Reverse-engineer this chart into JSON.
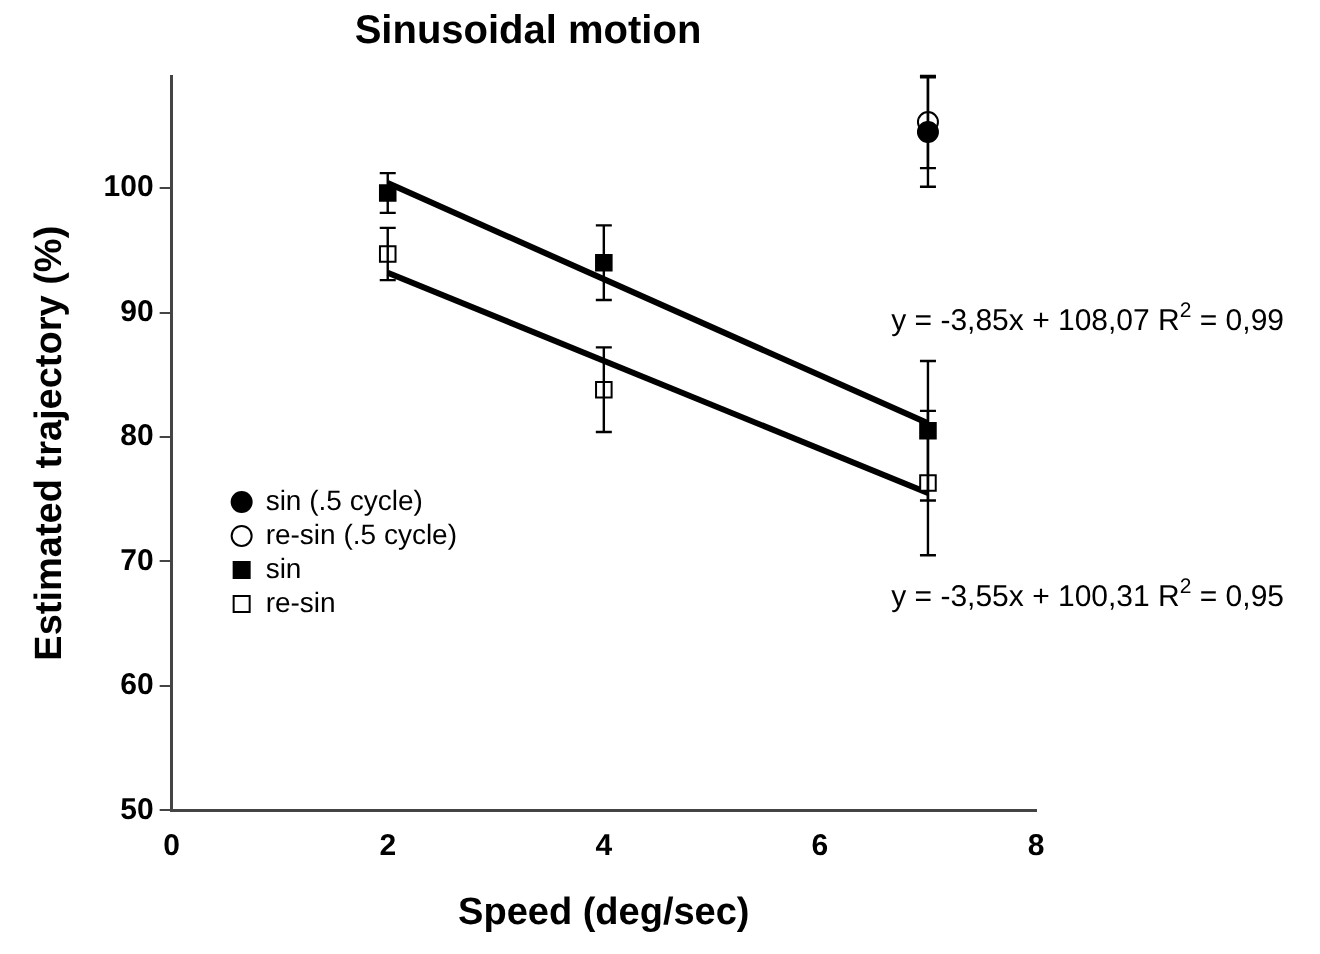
{
  "chart_data": {
    "type": "scatter",
    "title": "Sinusoidal motion",
    "xlabel": "Speed (deg/sec)",
    "ylabel": "Estimated trajectory (%)",
    "xlim": [
      0,
      8
    ],
    "xticks": [
      0,
      2,
      4,
      6,
      8
    ],
    "ylim": [
      50,
      109
    ],
    "yticks": [
      50,
      60,
      70,
      80,
      90,
      100
    ],
    "legend": "left",
    "grid": false,
    "annotations": [
      "y = -3,85x + 108,07 R$^{2}$ = 0,99",
      "y = -3,55x + 100,31 R$^{2}$ = 0,95"
    ],
    "series": [
      {
        "name": "sin (.5 cycle)",
        "marker": "circle",
        "color": "#000000",
        "x": [
          7
        ],
        "values": [
          104.5
        ],
        "errors": [
          4.4
        ]
      },
      {
        "name": "re-sin (.5 cycle)",
        "marker": "circle",
        "color": "#ffffff",
        "x": [
          7
        ],
        "values": [
          105.3
        ],
        "errors": [
          3.7
        ]
      },
      {
        "name": "sin",
        "marker": "square",
        "color": "#000000",
        "x": [
          2,
          4,
          7
        ],
        "values": [
          99.6,
          94.0,
          80.5
        ],
        "errors": [
          1.6,
          3.0,
          5.6
        ]
      },
      {
        "name": "re-sin",
        "marker": "square",
        "color": "#ffffff",
        "x": [
          2,
          4,
          7
        ],
        "values": [
          94.7,
          83.8,
          76.3
        ],
        "errors": [
          2.1,
          3.4,
          5.8
        ]
      },
      {
        "type": "line",
        "color": "#000000",
        "x": [
          2,
          7
        ],
        "values": [
          100.4,
          81.1
        ]
      },
      {
        "type": "line",
        "color": "#000000",
        "x": [
          2,
          7
        ],
        "values": [
          93.2,
          75.5
        ]
      }
    ]
  }
}
